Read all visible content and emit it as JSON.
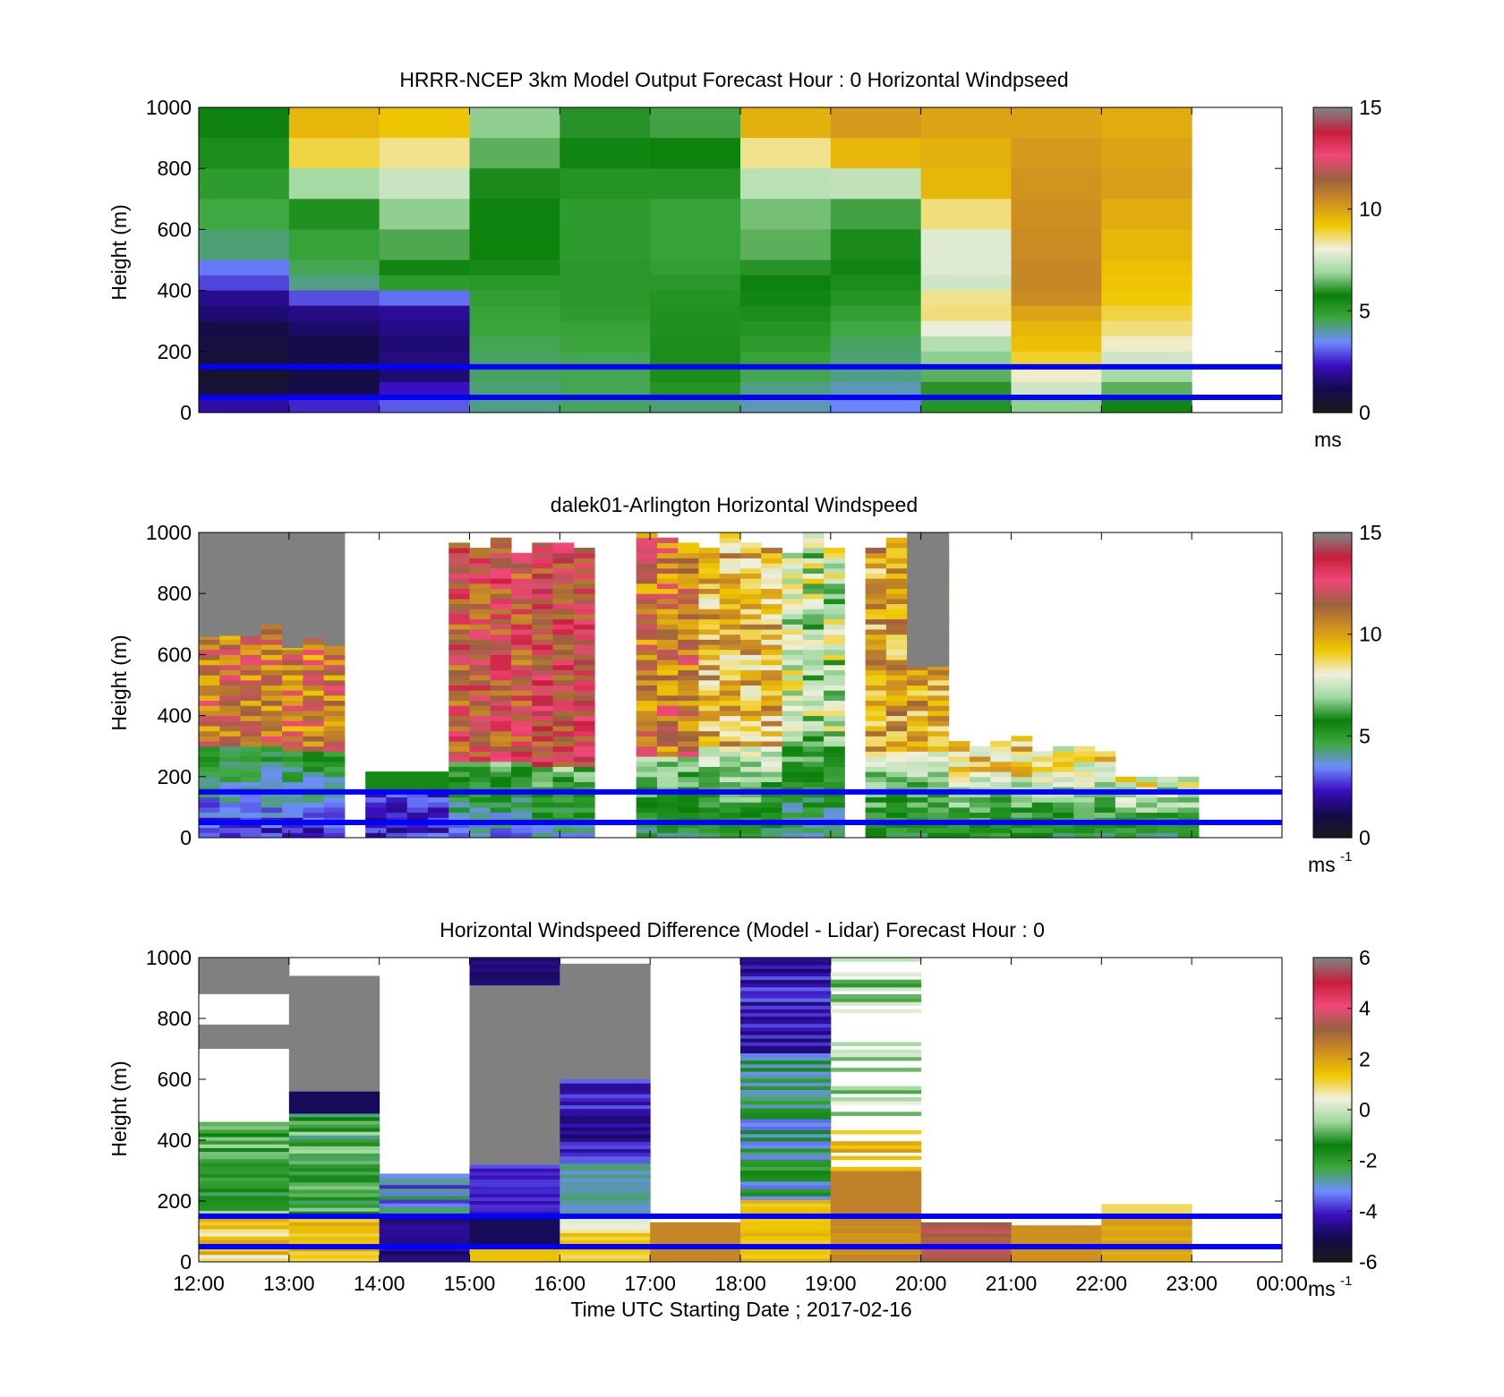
{
  "figure": {
    "xlabel": "Time UTC  Starting Date ; 2017-02-16"
  },
  "chart_data": [
    {
      "type": "heatmap",
      "title": "HRRR-NCEP 3km Model Output   Forecast Hour : 0 Horizontal Windpseed",
      "ylabel": "Height (m)",
      "yticks": [
        "0",
        "200",
        "400",
        "600",
        "800",
        "1000"
      ],
      "ylim": [
        0,
        1000
      ],
      "x": [
        "12:00",
        "13:00",
        "14:00",
        "15:00",
        "16:00",
        "17:00",
        "18:00",
        "19:00",
        "20:00",
        "21:00",
        "22:00",
        "23:00",
        "00:00"
      ],
      "heights": [
        1000,
        900,
        800,
        700,
        600,
        500,
        450,
        400,
        350,
        300,
        250,
        200,
        150,
        100,
        50,
        0
      ],
      "values": [
        [
          5.8,
          5.4,
          5.0,
          4.6,
          4.3,
          3.3,
          2.8,
          1.8,
          1.5,
          1.0,
          0.8,
          0.7,
          0.5,
          0.6,
          2.0
        ],
        [
          9.6,
          8.9,
          7.0,
          5.3,
          4.8,
          4.5,
          4.2,
          2.9,
          1.7,
          1.4,
          1.0,
          1.0,
          0.9,
          1.0,
          2.5
        ],
        [
          9.3,
          8.5,
          7.5,
          6.8,
          6.3,
          5.6,
          5.0,
          3.2,
          1.9,
          1.7,
          1.5,
          1.6,
          1.5,
          2.3,
          3.0
        ],
        [
          6.8,
          6.4,
          5.9,
          5.8,
          5.7,
          5.5,
          5.1,
          4.9,
          4.8,
          4.7,
          4.5,
          4.4,
          4.4,
          4.3,
          4.2
        ],
        [
          6.0,
          5.6,
          5.2,
          5.0,
          5.0,
          5.1,
          5.1,
          5.1,
          5.0,
          4.8,
          4.7,
          4.5,
          4.5,
          4.5,
          4.4
        ],
        [
          6.2,
          5.7,
          5.2,
          4.8,
          4.8,
          4.9,
          5.1,
          5.2,
          5.3,
          5.3,
          5.4,
          5.4,
          5.4,
          5.2,
          4.3
        ],
        [
          9.7,
          8.5,
          7.3,
          6.6,
          6.4,
          6.0,
          5.8,
          5.6,
          5.4,
          5.2,
          5.0,
          4.8,
          4.5,
          4.2,
          3.9
        ],
        [
          10.2,
          9.6,
          7.4,
          6.2,
          5.9,
          5.6,
          5.4,
          5.2,
          4.9,
          4.6,
          4.4,
          4.3,
          4.2,
          3.9,
          3.4
        ],
        [
          10.0,
          9.7,
          9.6,
          8.6,
          7.8,
          7.8,
          7.6,
          8.5,
          8.6,
          8.0,
          7.2,
          6.8,
          6.4,
          6.0,
          5.2
        ],
        [
          10.0,
          10.2,
          10.3,
          10.4,
          10.5,
          10.6,
          10.6,
          10.5,
          10.0,
          9.6,
          9.4,
          9.0,
          8.2,
          7.6,
          6.8
        ],
        [
          9.8,
          10.0,
          10.1,
          9.8,
          9.6,
          9.4,
          9.3,
          9.2,
          8.9,
          8.6,
          8.2,
          7.6,
          7.0,
          6.4,
          5.6
        ],
        [
          null,
          null,
          null,
          null,
          null,
          null,
          null,
          null,
          null,
          null,
          null,
          null,
          null,
          null,
          null
        ]
      ],
      "colorbar": {
        "ticks": [
          "0",
          "5",
          "10",
          "15"
        ],
        "clim": [
          0,
          15
        ],
        "unit": "ms",
        "unit_sup": ""
      },
      "reference_lines_m": [
        150,
        50
      ]
    },
    {
      "type": "heatmap",
      "title": "dalek01-Arlington  Horizontal Windspeed",
      "ylabel": "Height (m)",
      "yticks": [
        "0",
        "200",
        "400",
        "600",
        "800",
        "1000"
      ],
      "ylim": [
        0,
        1000
      ],
      "x": [
        "12:00",
        "13:00",
        "14:00",
        "15:00",
        "16:00",
        "17:00",
        "18:00",
        "19:00",
        "20:00",
        "21:00",
        "22:00",
        "23:00",
        "00:00"
      ],
      "colorbar": {
        "ticks": [
          "0",
          "5",
          "10",
          "15"
        ],
        "clim": [
          0,
          15
        ],
        "unit": "ms",
        "unit_sup": "-1"
      },
      "reference_lines_m": [
        150,
        50
      ]
    },
    {
      "type": "heatmap",
      "title": "Horizontal Windspeed Difference (Model - Lidar) Forecast Hour : 0",
      "ylabel": "Height (m)",
      "yticks": [
        "0",
        "200",
        "400",
        "600",
        "800",
        "1000"
      ],
      "ylim": [
        0,
        1000
      ],
      "x": [
        "12:00",
        "13:00",
        "14:00",
        "15:00",
        "16:00",
        "17:00",
        "18:00",
        "19:00",
        "20:00",
        "21:00",
        "22:00",
        "23:00",
        "00:00"
      ],
      "xticks": [
        "12:00",
        "13:00",
        "14:00",
        "15:00",
        "16:00",
        "17:00",
        "18:00",
        "19:00",
        "20:00",
        "21:00",
        "22:00",
        "23:00",
        "00:00"
      ],
      "colorbar": {
        "ticks": [
          "-6",
          "-4",
          "-2",
          "0",
          "2",
          "4",
          "6"
        ],
        "clim": [
          -6,
          6
        ],
        "unit": "ms",
        "unit_sup": "-1"
      },
      "reference_lines_m": [
        150,
        50
      ]
    }
  ],
  "colors": {
    "reference_line": "#0000ff",
    "missing": "#808080",
    "colormap": [
      "#1a1a1a",
      "#140a50",
      "#3a0fc0",
      "#6e8cff",
      "#3fa83f",
      "#0a800a",
      "#a0d8a0",
      "#f0f0e0",
      "#f0c800",
      "#d09020",
      "#9a6040",
      "#f04878",
      "#c81e3c",
      "#808080"
    ]
  }
}
